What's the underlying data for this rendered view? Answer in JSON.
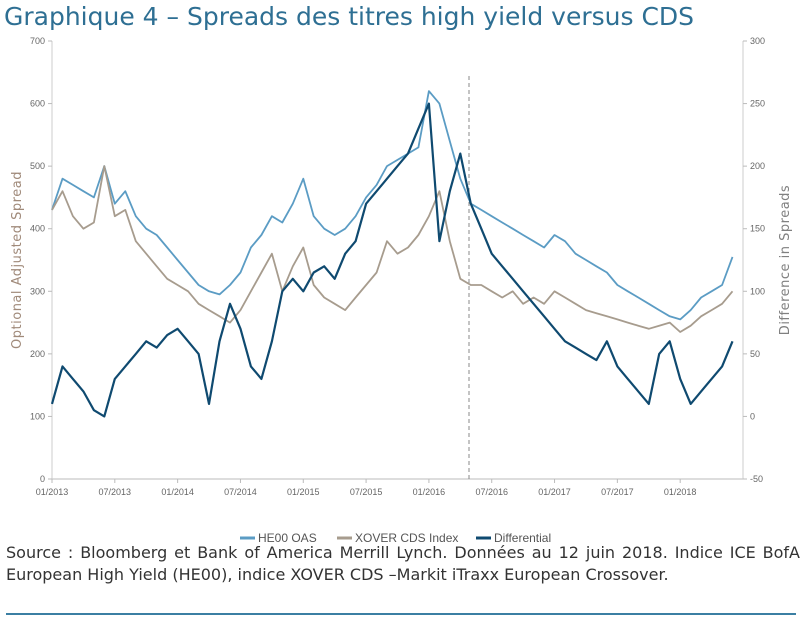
{
  "title": "Graphique 4 – Spreads des titres high yield versus CDS",
  "source": "Source : Bloomberg et Bank of America Merrill Lynch. Données au 12 juin 2018. Indice ICE BofA European High Yield (HE00), indice XOVER CDS –Markit iTraxx European Crossover.",
  "chart_data": {
    "type": "line",
    "title": "Graphique 4 – Spreads des titres high yield versus CDS",
    "ylabel": "Optional Adjusted Spread",
    "y2label": "Difference in Spreads",
    "ylim": [
      0,
      700
    ],
    "y2lim": [
      -50,
      300
    ],
    "yticks": [
      "0",
      "100",
      "200",
      "300",
      "400",
      "500",
      "600",
      "700"
    ],
    "y2ticks": [
      "-50",
      "0",
      "50",
      "100",
      "150",
      "200",
      "250",
      "300"
    ],
    "xticks": [
      "01/2013",
      "07/2013",
      "01/2014",
      "07/2014",
      "01/2015",
      "07/2015",
      "01/2016",
      "07/2016",
      "01/2017",
      "07/2017",
      "01/2018"
    ],
    "grid": false,
    "legend": "bottom",
    "annotation": "dashed vertical line near 06/2016",
    "series": [
      {
        "name": "HE00 OAS",
        "axis": "left",
        "color": "#5b9cc4",
        "x": [
          "2013-01",
          "2013-02",
          "2013-03",
          "2013-04",
          "2013-05",
          "2013-06",
          "2013-07",
          "2013-08",
          "2013-09",
          "2013-10",
          "2013-11",
          "2013-12",
          "2014-01",
          "2014-02",
          "2014-03",
          "2014-04",
          "2014-05",
          "2014-06",
          "2014-07",
          "2014-08",
          "2014-09",
          "2014-10",
          "2014-11",
          "2014-12",
          "2015-01",
          "2015-02",
          "2015-03",
          "2015-04",
          "2015-05",
          "2015-06",
          "2015-07",
          "2015-08",
          "2015-09",
          "2015-10",
          "2015-11",
          "2015-12",
          "2016-01",
          "2016-02",
          "2016-03",
          "2016-04",
          "2016-05",
          "2016-06",
          "2016-07",
          "2016-08",
          "2016-09",
          "2016-10",
          "2016-11",
          "2016-12",
          "2017-01",
          "2017-02",
          "2017-03",
          "2017-04",
          "2017-05",
          "2017-06",
          "2017-07",
          "2017-08",
          "2017-09",
          "2017-10",
          "2017-11",
          "2017-12",
          "2018-01",
          "2018-02",
          "2018-03",
          "2018-04",
          "2018-05",
          "2018-06"
        ],
        "values": [
          430,
          480,
          470,
          460,
          450,
          500,
          440,
          460,
          420,
          400,
          390,
          370,
          350,
          330,
          310,
          300,
          295,
          310,
          330,
          370,
          390,
          420,
          410,
          440,
          480,
          420,
          400,
          390,
          400,
          420,
          450,
          470,
          500,
          510,
          520,
          530,
          620,
          600,
          540,
          480,
          440,
          430,
          420,
          410,
          400,
          390,
          380,
          370,
          390,
          380,
          360,
          350,
          340,
          330,
          310,
          300,
          290,
          280,
          270,
          260,
          255,
          270,
          290,
          300,
          310,
          355
        ]
      },
      {
        "name": "XOVER CDS Index",
        "axis": "left",
        "color": "#a79c8e",
        "x": [
          "2013-01",
          "2013-02",
          "2013-03",
          "2013-04",
          "2013-05",
          "2013-06",
          "2013-07",
          "2013-08",
          "2013-09",
          "2013-10",
          "2013-11",
          "2013-12",
          "2014-01",
          "2014-02",
          "2014-03",
          "2014-04",
          "2014-05",
          "2014-06",
          "2014-07",
          "2014-08",
          "2014-09",
          "2014-10",
          "2014-11",
          "2014-12",
          "2015-01",
          "2015-02",
          "2015-03",
          "2015-04",
          "2015-05",
          "2015-06",
          "2015-07",
          "2015-08",
          "2015-09",
          "2015-10",
          "2015-11",
          "2015-12",
          "2016-01",
          "2016-02",
          "2016-03",
          "2016-04",
          "2016-05",
          "2016-06",
          "2016-07",
          "2016-08",
          "2016-09",
          "2016-10",
          "2016-11",
          "2016-12",
          "2017-01",
          "2017-02",
          "2017-03",
          "2017-04",
          "2017-05",
          "2017-06",
          "2017-07",
          "2017-08",
          "2017-09",
          "2017-10",
          "2017-11",
          "2017-12",
          "2018-01",
          "2018-02",
          "2018-03",
          "2018-04",
          "2018-05",
          "2018-06"
        ],
        "values": [
          430,
          460,
          420,
          400,
          410,
          500,
          420,
          430,
          380,
          360,
          340,
          320,
          310,
          300,
          280,
          270,
          260,
          250,
          270,
          300,
          330,
          360,
          300,
          340,
          370,
          310,
          290,
          280,
          270,
          290,
          310,
          330,
          380,
          360,
          370,
          390,
          420,
          460,
          380,
          320,
          310,
          310,
          300,
          290,
          300,
          280,
          290,
          280,
          300,
          290,
          280,
          270,
          265,
          260,
          255,
          250,
          245,
          240,
          245,
          250,
          235,
          245,
          260,
          270,
          280,
          300
        ]
      },
      {
        "name": "Differential",
        "axis": "right",
        "color": "#0f4a70",
        "x": [
          "2013-01",
          "2013-02",
          "2013-03",
          "2013-04",
          "2013-05",
          "2013-06",
          "2013-07",
          "2013-08",
          "2013-09",
          "2013-10",
          "2013-11",
          "2013-12",
          "2014-01",
          "2014-02",
          "2014-03",
          "2014-04",
          "2014-05",
          "2014-06",
          "2014-07",
          "2014-08",
          "2014-09",
          "2014-10",
          "2014-11",
          "2014-12",
          "2015-01",
          "2015-02",
          "2015-03",
          "2015-04",
          "2015-05",
          "2015-06",
          "2015-07",
          "2015-08",
          "2015-09",
          "2015-10",
          "2015-11",
          "2015-12",
          "2016-01",
          "2016-02",
          "2016-03",
          "2016-04",
          "2016-05",
          "2016-06",
          "2016-07",
          "2016-08",
          "2016-09",
          "2016-10",
          "2016-11",
          "2016-12",
          "2017-01",
          "2017-02",
          "2017-03",
          "2017-04",
          "2017-05",
          "2017-06",
          "2017-07",
          "2017-08",
          "2017-09",
          "2017-10",
          "2017-11",
          "2017-12",
          "2018-01",
          "2018-02",
          "2018-03",
          "2018-04",
          "2018-05",
          "2018-06"
        ],
        "values": [
          10,
          40,
          30,
          20,
          5,
          0,
          30,
          40,
          50,
          60,
          55,
          65,
          70,
          60,
          50,
          10,
          60,
          90,
          70,
          40,
          30,
          60,
          100,
          110,
          100,
          115,
          120,
          110,
          130,
          140,
          170,
          180,
          190,
          200,
          210,
          230,
          250,
          140,
          180,
          210,
          170,
          150,
          130,
          120,
          110,
          100,
          90,
          80,
          70,
          60,
          55,
          50,
          45,
          60,
          40,
          30,
          20,
          10,
          50,
          60,
          30,
          10,
          20,
          30,
          40,
          60
        ]
      }
    ]
  }
}
